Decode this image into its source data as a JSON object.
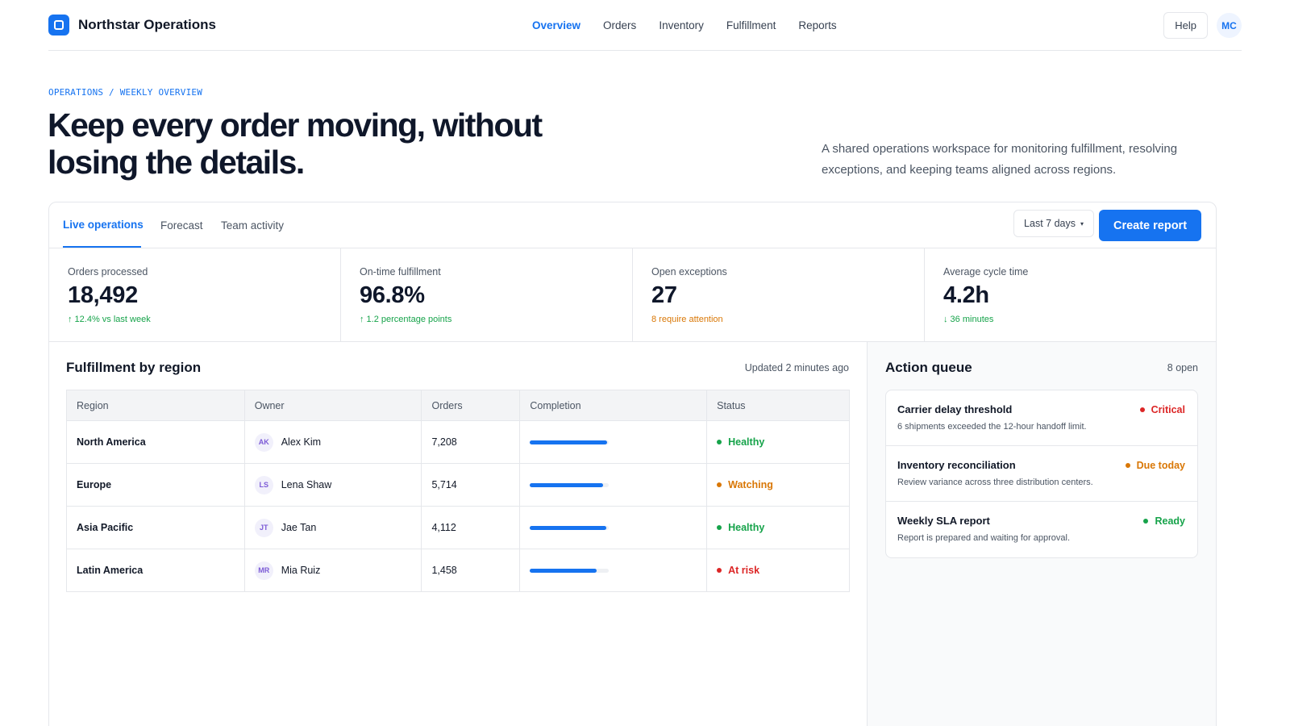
{
  "brand": {
    "name": "Northstar Operations"
  },
  "nav": {
    "items": [
      {
        "label": "Overview",
        "active": true
      },
      {
        "label": "Orders",
        "active": false
      },
      {
        "label": "Inventory",
        "active": false
      },
      {
        "label": "Fulfillment",
        "active": false
      },
      {
        "label": "Reports",
        "active": false
      }
    ],
    "help_label": "Help",
    "user_initials": "MC"
  },
  "hero": {
    "breadcrumb": "OPERATIONS / WEEKLY OVERVIEW",
    "title": "Keep every order moving, without losing the details.",
    "description": "A shared operations workspace for monitoring fulfillment, resolving exceptions, and keeping teams aligned across regions."
  },
  "tabs": [
    {
      "label": "Live operations",
      "active": true
    },
    {
      "label": "Forecast",
      "active": false
    },
    {
      "label": "Team activity",
      "active": false
    }
  ],
  "toolbar": {
    "range_label": "Last 7 days",
    "create_label": "Create report"
  },
  "stats": [
    {
      "label": "Orders processed",
      "value": "18,492",
      "delta": "↑ 12.4% vs last week",
      "tone": "green"
    },
    {
      "label": "On-time fulfillment",
      "value": "96.8%",
      "delta": "↑ 1.2 percentage points",
      "tone": "green"
    },
    {
      "label": "Open exceptions",
      "value": "27",
      "delta": "8 require attention",
      "tone": "orange"
    },
    {
      "label": "Average cycle time",
      "value": "4.2h",
      "delta": "↓ 36 minutes",
      "tone": "green"
    }
  ],
  "regions": {
    "title": "Fulfillment by region",
    "updated": "Updated 2 minutes ago",
    "columns": [
      "Region",
      "Owner",
      "Orders",
      "Completion",
      "Status"
    ],
    "rows": [
      {
        "region": "North America",
        "initials": "AK",
        "owner": "Alex Kim",
        "orders": "7,208",
        "completion": 0.98,
        "status": "Healthy",
        "tone": "green"
      },
      {
        "region": "Europe",
        "initials": "LS",
        "owner": "Lena Shaw",
        "orders": "5,714",
        "completion": 0.93,
        "status": "Watching",
        "tone": "orange"
      },
      {
        "region": "Asia Pacific",
        "initials": "JT",
        "owner": "Jae Tan",
        "orders": "4,112",
        "completion": 0.97,
        "status": "Healthy",
        "tone": "green"
      },
      {
        "region": "Latin America",
        "initials": "MR",
        "owner": "Mia Ruiz",
        "orders": "1,458",
        "completion": 0.84,
        "status": "At risk",
        "tone": "red"
      }
    ]
  },
  "queue": {
    "title": "Action queue",
    "count": "8 open",
    "items": [
      {
        "title": "Carrier delay threshold",
        "desc": "6 shipments exceeded the 12-hour handoff limit.",
        "status": "Critical",
        "tone": "red"
      },
      {
        "title": "Inventory reconciliation",
        "desc": "Review variance across three distribution centers.",
        "status": "Due today",
        "tone": "orange"
      },
      {
        "title": "Weekly SLA report",
        "desc": "Report is prepared and waiting for approval.",
        "status": "Ready",
        "tone": "green"
      }
    ]
  },
  "colors": {
    "accent": "#1673f0",
    "green": "#16a34a",
    "orange": "#d97706",
    "red": "#dc2626"
  }
}
